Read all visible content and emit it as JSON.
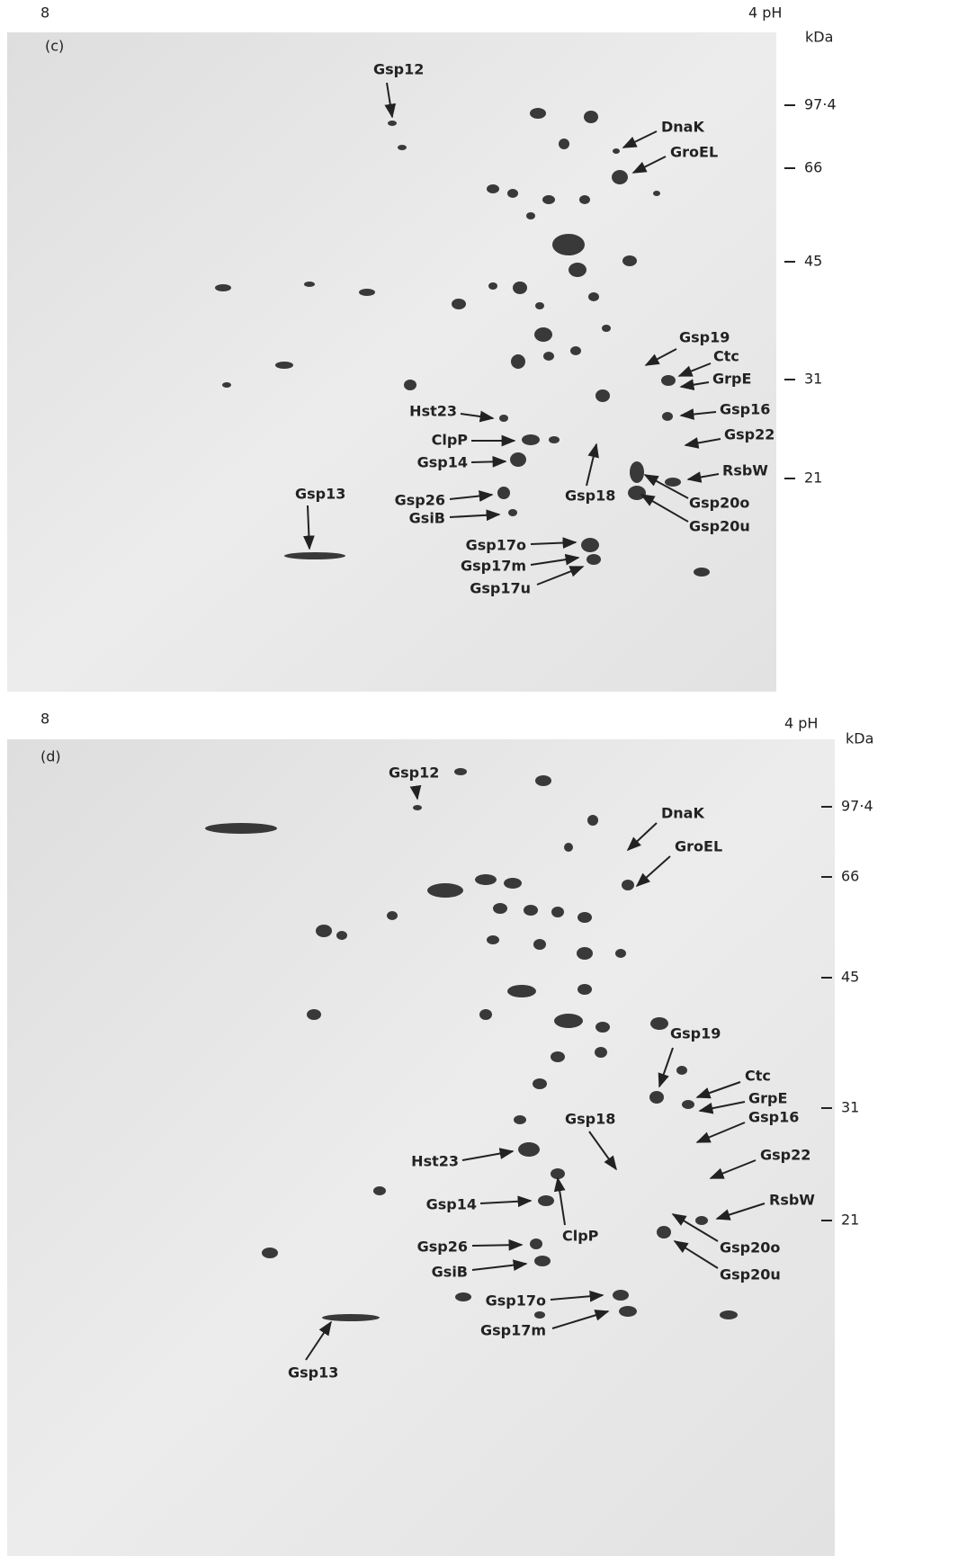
{
  "panels": [
    {
      "pH_left": "8",
      "pH_right": "4 pH",
      "unit": "kDa",
      "label": "(c)",
      "mass_markers": [
        "97·4",
        "66",
        "45",
        "31",
        "21"
      ],
      "proteins": [
        "Gsp12",
        "DnaK",
        "GroEL",
        "Gsp19",
        "Ctc",
        "GrpE",
        "Gsp16",
        "Gsp22",
        "RsbW",
        "Gsp20o",
        "Gsp20u",
        "Hst23",
        "ClpP",
        "Gsp14",
        "Gsp26",
        "GsiB",
        "Gsp18",
        "Gsp13",
        "Gsp17o",
        "Gsp17m",
        "Gsp17u"
      ]
    },
    {
      "pH_left": "8",
      "pH_right": "4 pH",
      "unit": "kDa",
      "label": "(d)",
      "mass_markers": [
        "97·4",
        "66",
        "45",
        "31",
        "21"
      ],
      "proteins": [
        "Gsp12",
        "DnaK",
        "GroEL",
        "Gsp19",
        "Ctc",
        "GrpE",
        "Gsp16",
        "Gsp22",
        "RsbW",
        "Gsp20o",
        "Gsp20u",
        "Gsp18",
        "Hst23",
        "Gsp14",
        "ClpP",
        "Gsp26",
        "GsiB",
        "Gsp17o",
        "Gsp17m",
        "Gsp13"
      ]
    }
  ]
}
